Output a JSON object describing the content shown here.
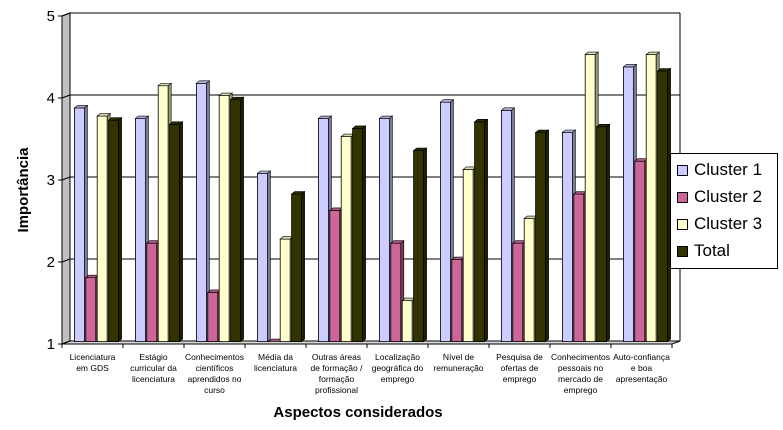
{
  "chart_data": {
    "type": "bar",
    "title": "",
    "xlabel": "Aspectos considerados",
    "ylabel": "Importância",
    "ylim": [
      1,
      5
    ],
    "yticks": [
      "1",
      "2",
      "3",
      "4",
      "5"
    ],
    "grid": true,
    "legend_position": "right",
    "categories": [
      [
        "Licenciatura",
        "em  GDS"
      ],
      [
        "Estágio",
        "curricular da",
        "licenciatura"
      ],
      [
        "Conhecimentos",
        "científicos",
        "aprendidos no",
        "curso"
      ],
      [
        "Média da",
        "licenciatura"
      ],
      [
        "Outras áreas",
        "de formação /",
        "formação",
        "profissional"
      ],
      [
        "Localização",
        "geográfica do",
        "emprego"
      ],
      [
        "Nível de",
        "remuneração"
      ],
      [
        "Pesquisa de",
        "ofertas de",
        "emprego"
      ],
      [
        "Conhecimentos",
        "pessoais  no",
        "mercado de",
        "emprego"
      ],
      [
        "Auto-confiança",
        "e boa",
        "apresentação"
      ]
    ],
    "series": [
      {
        "name": "Cluster 1",
        "color": "#CCCCFF",
        "values": [
          3.85,
          3.72,
          4.15,
          3.05,
          3.72,
          3.72,
          3.92,
          3.82,
          3.55,
          4.35
        ]
      },
      {
        "name": "Cluster 2",
        "color": "#CC6699",
        "values": [
          1.78,
          2.2,
          1.6,
          1.0,
          2.6,
          2.2,
          2.0,
          2.2,
          2.8,
          3.2
        ]
      },
      {
        "name": "Cluster 3",
        "color": "#FFFFCC",
        "values": [
          3.75,
          4.12,
          4.0,
          2.25,
          3.5,
          1.5,
          3.1,
          2.5,
          4.5,
          4.5
        ]
      },
      {
        "name": "Total",
        "color": "#333300",
        "values": [
          3.7,
          3.65,
          3.95,
          2.8,
          3.6,
          3.33,
          3.68,
          3.55,
          3.62,
          4.3
        ]
      }
    ]
  }
}
